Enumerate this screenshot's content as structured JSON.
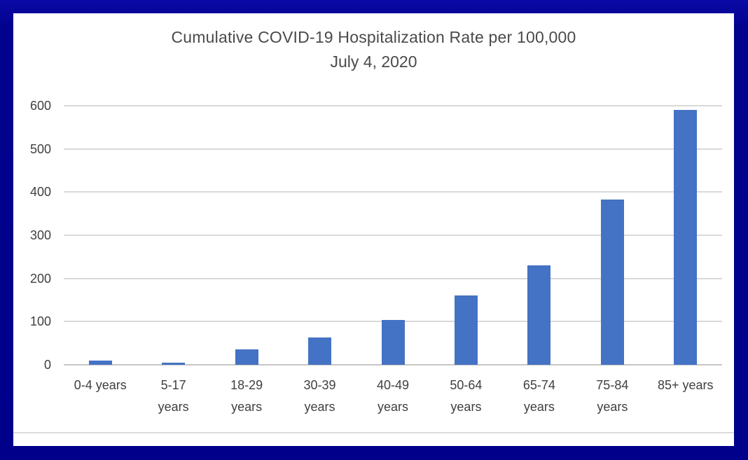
{
  "chart_data": {
    "type": "bar",
    "title": "Cumulative COVID-19 Hospitalization Rate per 100,000",
    "subtitle": "July 4, 2020",
    "categories": [
      "0-4 years",
      "5-17\nyears",
      "18-29\nyears",
      "30-39\nyears",
      "40-49\nyears",
      "50-64\nyears",
      "65-74\nyears",
      "75-84\nyears",
      "85+ years"
    ],
    "values": [
      10,
      5,
      36,
      64,
      104,
      160,
      230,
      383,
      590
    ],
    "yticks": [
      0,
      100,
      200,
      300,
      400,
      500,
      600
    ],
    "ylim": [
      0,
      600
    ],
    "xlabel": "",
    "ylabel": "",
    "grid": "horizontal",
    "legend": "none",
    "bar_color": "#4472c4",
    "gridline_color": "#d9d9d9",
    "text_color": "#404040",
    "plot_background": "#ffffff",
    "frame_color": "#00008b"
  }
}
